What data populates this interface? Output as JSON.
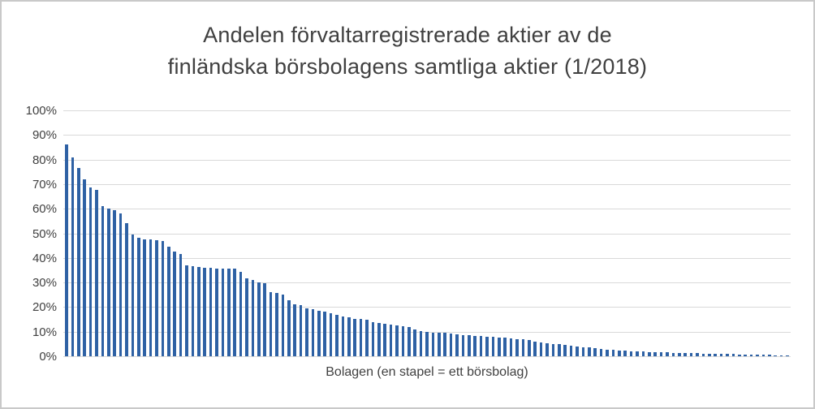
{
  "figure": {
    "title": "Andelen förvaltarregistrerade aktier av de\nfinländska börsbolagens samtliga aktier (1/2018)"
  },
  "chart_data": {
    "type": "bar",
    "title": "Andelen förvaltarregistrerade aktier av de finländska börsbolagens samtliga aktier (1/2018)",
    "xlabel": "Bolagen (en stapel = ett börsbolag)",
    "ylabel": "",
    "ylim": [
      0,
      100
    ],
    "grid": true,
    "legend": "none",
    "bar_color": "#2e61a4",
    "gridline_color": "#d9d9d9",
    "text_color": "#404040",
    "y_ticks": [
      "100%",
      "90%",
      "80%",
      "70%",
      "60%",
      "50%",
      "40%",
      "30%",
      "20%",
      "10%",
      "0%"
    ],
    "unit": "%",
    "values": [
      86,
      81,
      76.5,
      72,
      68.5,
      67.5,
      61,
      60,
      59.5,
      58,
      54,
      49.5,
      48.3,
      47.6,
      47.4,
      47.2,
      47,
      44.5,
      42.5,
      41.5,
      37,
      36.5,
      36.2,
      36,
      35.9,
      35.8,
      35.7,
      35.6,
      35.5,
      34.4,
      31.7,
      31,
      30.2,
      29.6,
      26,
      25.7,
      25,
      22.8,
      21,
      20.8,
      19.4,
      19.1,
      18.5,
      18.2,
      17.4,
      16.9,
      16.3,
      15.8,
      15.3,
      15.2,
      14.7,
      13.9,
      13.6,
      13.2,
      13,
      12.5,
      12.2,
      11.9,
      10.9,
      10.3,
      9.8,
      9.6,
      9.5,
      9.5,
      9.4,
      8.8,
      8.6,
      8.5,
      8.4,
      8.2,
      8,
      7.8,
      7.7,
      7.5,
      7.3,
      7,
      6.8,
      6.5,
      5.8,
      5.5,
      5.2,
      5,
      4.8,
      4.5,
      4.2,
      4,
      3.8,
      3.6,
      3.3,
      3,
      2.8,
      2.6,
      2.4,
      2.2,
      2.1,
      2,
      1.9,
      1.8,
      1.7,
      1.6,
      1.5,
      1.4,
      1.4,
      1.3,
      1.2,
      1.2,
      1.1,
      1.1,
      1,
      1,
      0.9,
      0.9,
      0.8,
      0.8,
      0.7,
      0.7,
      0.6,
      0.6,
      0.5,
      0.5,
      0.4
    ]
  }
}
